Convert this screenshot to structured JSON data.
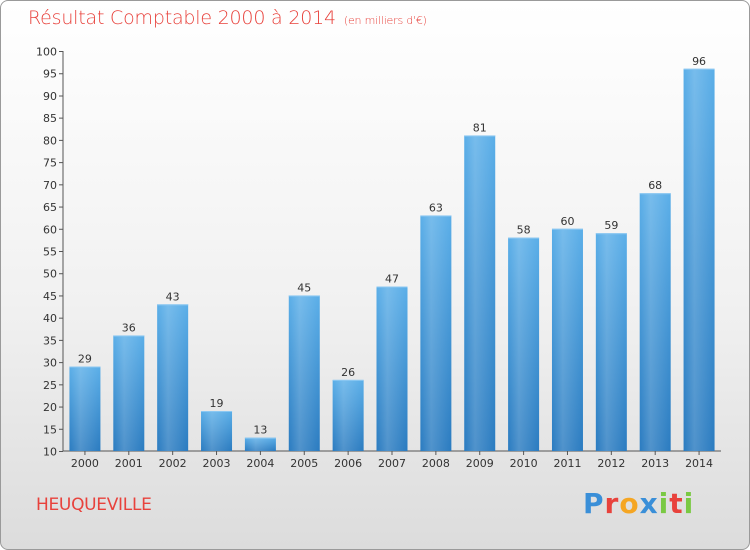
{
  "title": "Résultat Comptable 2000 à 2014",
  "unit": "(en milliers d'€)",
  "place": "HEUQUEVILLE",
  "logo": {
    "letters": [
      "P",
      "r",
      "o",
      "x",
      "i",
      "t",
      "i"
    ]
  },
  "colors": {
    "title": "#e8423c",
    "bar_top": "#5aaee8",
    "bar_bottom": "#2a7bc0",
    "logo": [
      "#3a8fd8",
      "#e8423c",
      "#f5a623",
      "#3a8fd8",
      "#7ac943",
      "#e8423c",
      "#7ac943"
    ]
  },
  "chart_data": {
    "type": "bar",
    "title": "Résultat Comptable 2000 à 2014 (en milliers d'€)",
    "xlabel": "",
    "ylabel": "",
    "categories": [
      "2000",
      "2001",
      "2002",
      "2003",
      "2004",
      "2005",
      "2006",
      "2007",
      "2008",
      "2009",
      "2010",
      "2011",
      "2012",
      "2013",
      "2014"
    ],
    "values": [
      29,
      36,
      43,
      19,
      13,
      45,
      26,
      47,
      63,
      81,
      58,
      60,
      59,
      68,
      96
    ],
    "ylim": [
      10,
      100
    ],
    "yticks": [
      10,
      15,
      20,
      25,
      30,
      35,
      40,
      45,
      50,
      55,
      60,
      65,
      70,
      75,
      80,
      85,
      90,
      95,
      100
    ],
    "grid": false
  }
}
